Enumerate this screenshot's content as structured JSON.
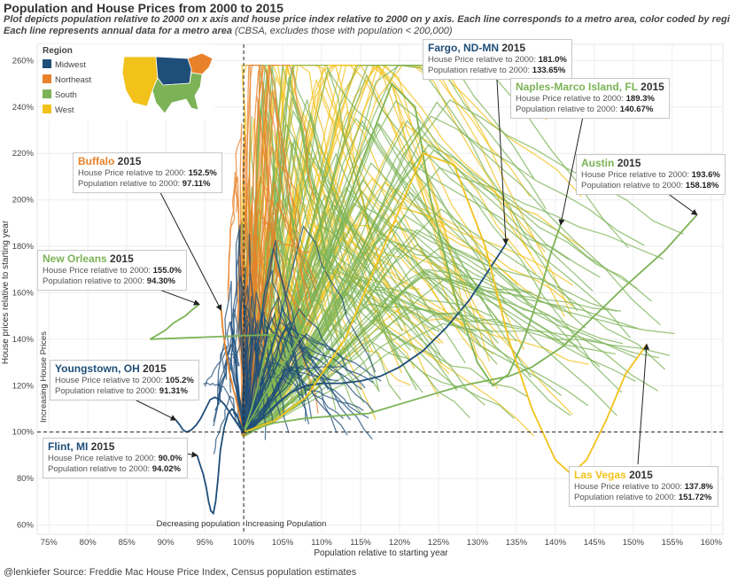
{
  "title": "Population and House Prices from 2000 to 2015",
  "subtitle_line1": "Plot depicts population relative to 2000 on x axis and house price index relative to 2000 on y axis. Each line corresponds to a metro area, color coded by region.",
  "subtitle_line2_bold": "Each line represents annual data for a metro area",
  "subtitle_line2_plain": " (CBSA, excludes those with population < 200,000)",
  "footer": "@lenkiefer Source: Freddie Mac House Price Index, Census population estimates",
  "legend": {
    "title": "Region",
    "items": [
      {
        "label": "Midwest",
        "color": "#1f4e79"
      },
      {
        "label": "Northeast",
        "color": "#e8822a"
      },
      {
        "label": "South",
        "color": "#7cb356"
      },
      {
        "label": "West",
        "color": "#f2c21b"
      }
    ]
  },
  "annotations": [
    {
      "name": "Fargo, ND-MN",
      "year": "2015",
      "hp_label": "House Price relative to 2000: ",
      "hp": "181.0%",
      "pop_label": "Population relative to 2000: ",
      "pop": "133.65%",
      "color": "#1f4e79"
    },
    {
      "name": "Naples-Marco Island, FL",
      "year": "2015",
      "hp_label": "House Price relative to 2000: ",
      "hp": "189.3%",
      "pop_label": "Population relative to 2000: ",
      "pop": "140.67%",
      "color": "#7cb356"
    },
    {
      "name": "Buffalo",
      "year": "2015",
      "hp_label": "House Price relative to 2000: ",
      "hp": "152.5%",
      "pop_label": "Population relative to 2000: ",
      "pop": "97.11%",
      "color": "#e8822a"
    },
    {
      "name": "Austin",
      "year": "2015",
      "hp_label": "House Price relative to 2000: ",
      "hp": "193.6%",
      "pop_label": "Population relative to 2000: ",
      "pop": "158.18%",
      "color": "#7cb356"
    },
    {
      "name": "New Orleans",
      "year": "2015",
      "hp_label": "House Price relative to 2000: ",
      "hp": "155.0%",
      "pop_label": "Population relative to 2000: ",
      "pop": "94.30%",
      "color": "#7cb356"
    },
    {
      "name": "Youngstown, OH",
      "year": "2015",
      "hp_label": "House Price relative to 2000: ",
      "hp": "105.2%",
      "pop_label": "Population relative to 2000: ",
      "pop": "91.31%",
      "color": "#1f4e79"
    },
    {
      "name": "Flint, MI",
      "year": "2015",
      "hp_label": "House Price relative to 2000: ",
      "hp": "90.0%",
      "pop_label": "Population relative to 2000: ",
      "pop": "94.02%",
      "color": "#1f4e79"
    },
    {
      "name": "Las Vegas",
      "year": "2015",
      "hp_label": "House Price relative to 2000: ",
      "hp": "137.8%",
      "pop_label": "Population relative to 2000: ",
      "pop": "151.72%",
      "color": "#f2c21b"
    }
  ],
  "chart_data": {
    "type": "line",
    "xlabel": "Population relative to starting year",
    "ylabel": "House prices relative to starting year",
    "xlim": [
      73.5,
      161.5
    ],
    "ylim": [
      56,
      267
    ],
    "x_ticks": [
      "75%",
      "80%",
      "85%",
      "90%",
      "95%",
      "100%",
      "105%",
      "110%",
      "115%",
      "120%",
      "125%",
      "130%",
      "135%",
      "140%",
      "145%",
      "150%",
      "155%",
      "160%"
    ],
    "y_ticks": [
      "60%",
      "80%",
      "100%",
      "120%",
      "140%",
      "160%",
      "180%",
      "200%",
      "220%",
      "240%",
      "260%"
    ],
    "ref_vertical_label_left": "Decreasing population",
    "ref_vertical_label_right": "Increasing Population",
    "ref_horizontal_label": "Increasing House Prices",
    "grid": true,
    "series": [
      {
        "name": "Fargo, ND-MN",
        "region": "Midwest",
        "x": [
          100,
          101.5,
          103,
          104.5,
          106,
          108,
          110,
          112.5,
          115,
          117.5,
          120,
          123,
          126,
          129,
          131.5,
          133.65
        ],
        "y": [
          100,
          103,
          108,
          113,
          117,
          120,
          121,
          121,
          122,
          124,
          128,
          135,
          145,
          157,
          170,
          181.0
        ]
      },
      {
        "name": "Naples-Marco Island, FL",
        "region": "South",
        "x": [
          100,
          103,
          107,
          111,
          115,
          119,
          122,
          124,
          127,
          130,
          132,
          134,
          136,
          138,
          139.5,
          140.67
        ],
        "y": [
          100,
          118,
          140,
          175,
          215,
          250,
          240,
          200,
          160,
          130,
          120,
          125,
          140,
          160,
          178,
          189.3
        ]
      },
      {
        "name": "Buffalo",
        "region": "Northeast",
        "x": [
          100,
          99.7,
          99.5,
          99.3,
          99.1,
          98.9,
          98.7,
          98.5,
          98.3,
          98.1,
          97.9,
          97.7,
          97.5,
          97.3,
          97.2,
          97.11
        ],
        "y": [
          100,
          103,
          107,
          110,
          113,
          116,
          118,
          121,
          124,
          127,
          131,
          135,
          140,
          145,
          149,
          152.5
        ]
      },
      {
        "name": "Austin",
        "region": "South",
        "x": [
          100,
          104,
          108,
          112,
          116,
          120,
          124,
          128,
          131,
          134,
          137,
          141,
          145,
          149,
          154,
          158.18
        ],
        "y": [
          100,
          104,
          106,
          107,
          108,
          112,
          116,
          120,
          122,
          124,
          128,
          137,
          150,
          163,
          178,
          193.6
        ]
      },
      {
        "name": "New Orleans",
        "region": "South",
        "x": [
          100,
          100.5,
          101,
          101.5,
          102,
          102.5,
          103,
          103.5,
          104,
          88,
          89,
          90,
          91,
          92.5,
          93.5,
          94.3
        ],
        "y": [
          100,
          105,
          110,
          116,
          122,
          130,
          137,
          141,
          142,
          140,
          142,
          144,
          147,
          150,
          153,
          155.0
        ]
      },
      {
        "name": "Youngstown, OH",
        "region": "Midwest",
        "x": [
          100,
          99.3,
          98.7,
          98.1,
          97.5,
          96.9,
          96.3,
          95.7,
          95.1,
          94.5,
          93.9,
          93.3,
          92.7,
          92.2,
          91.8,
          91.31
        ],
        "y": [
          100,
          103,
          106,
          109,
          112,
          114,
          115,
          114,
          110,
          106,
          103,
          101,
          100,
          101,
          103,
          105.2
        ]
      },
      {
        "name": "Flint, MI",
        "region": "Midwest",
        "x": [
          100,
          99.5,
          99,
          98.5,
          98,
          97.5,
          97,
          96.7,
          96.4,
          96.1,
          95.8,
          95.5,
          95.2,
          94.8,
          94.4,
          94.02
        ],
        "y": [
          100,
          104,
          108,
          110,
          108,
          102,
          92,
          80,
          70,
          65,
          66,
          70,
          76,
          82,
          86,
          90.0
        ]
      },
      {
        "name": "Las Vegas",
        "region": "West",
        "x": [
          100,
          104,
          108,
          113,
          118,
          123,
          127,
          131,
          134,
          137,
          140,
          142,
          144,
          146.5,
          149,
          151.72
        ],
        "y": [
          100,
          105,
          115,
          140,
          180,
          220,
          215,
          180,
          140,
          110,
          88,
          82,
          88,
          105,
          125,
          137.8
        ]
      }
    ]
  }
}
